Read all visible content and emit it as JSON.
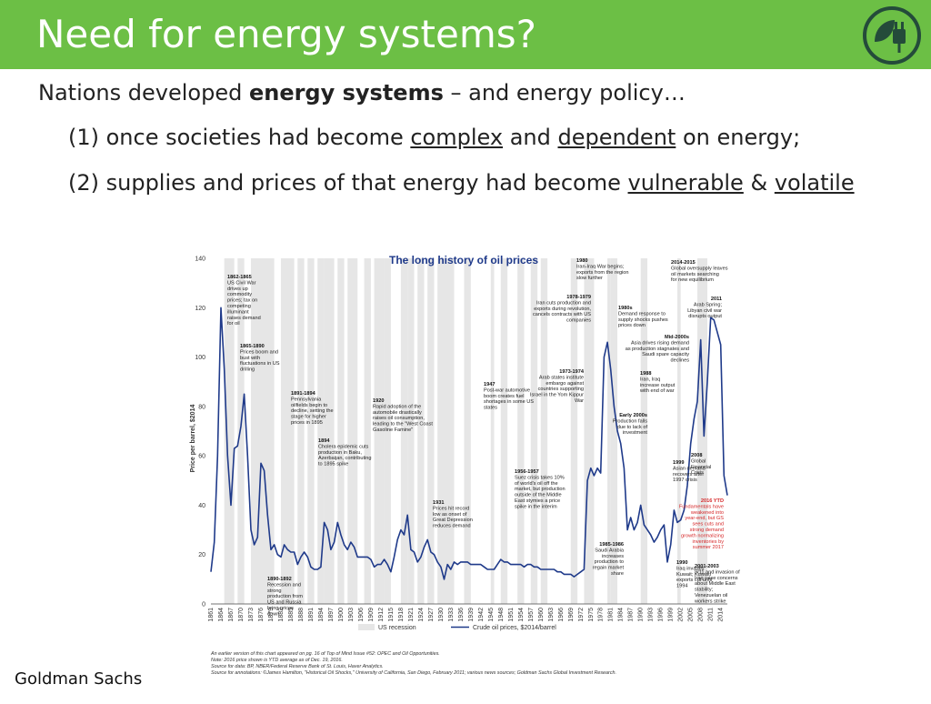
{
  "slide": {
    "title": "Need for energy systems?",
    "logo_icon": "plug-leaf-icon",
    "line1": {
      "pre": "Nations developed ",
      "bold": "energy systems",
      "post": " – and energy policy…"
    },
    "line2": {
      "pre": "(1) once  societies had become ",
      "u1": "complex",
      "mid": " and ",
      "u2": "dependent",
      "post": " on energy;"
    },
    "line3": {
      "pre": "(2) supplies and prices of that energy had become ",
      "u1": "vulnerable",
      "mid": " & ",
      "u2": "volatile"
    },
    "footer": "Goldman Sachs",
    "colors": {
      "header": "#6cbf45",
      "series": "#1f3a8a",
      "recession": "#e6e6e6",
      "highlight": "#d62728"
    }
  },
  "chart_data": {
    "type": "line",
    "title": "The long history of oil prices",
    "ylabel": "Price per barrel, $2014",
    "ylim": [
      0,
      140
    ],
    "yticks": [
      "0",
      "20",
      "40",
      "60",
      "80",
      "100",
      "120",
      "140"
    ],
    "xlim": [
      1861,
      2016
    ],
    "xticks": [
      "1861",
      "1864",
      "1867",
      "1870",
      "1873",
      "1876",
      "1879",
      "1882",
      "1885",
      "1888",
      "1891",
      "1894",
      "1897",
      "1900",
      "1903",
      "1906",
      "1909",
      "1912",
      "1915",
      "1918",
      "1921",
      "1924",
      "1927",
      "1930",
      "1933",
      "1936",
      "1939",
      "1942",
      "1945",
      "1948",
      "1951",
      "1954",
      "1957",
      "1960",
      "1963",
      "1966",
      "1969",
      "1972",
      "1975",
      "1978",
      "1981",
      "1984",
      "1987",
      "1990",
      "1993",
      "1996",
      "1999",
      "2002",
      "2005",
      "2008",
      "2011",
      "2014"
    ],
    "legend": [
      "US recession",
      "Crude oil prices, $2014/barrel"
    ],
    "series": [
      {
        "name": "Crude oil prices, $2014/barrel",
        "x": [
          1861,
          1862,
          1863,
          1864,
          1865,
          1866,
          1867,
          1868,
          1869,
          1870,
          1871,
          1872,
          1873,
          1874,
          1875,
          1876,
          1877,
          1878,
          1879,
          1880,
          1881,
          1882,
          1883,
          1884,
          1885,
          1886,
          1887,
          1888,
          1889,
          1890,
          1891,
          1892,
          1893,
          1894,
          1895,
          1896,
          1897,
          1898,
          1899,
          1900,
          1901,
          1902,
          1903,
          1904,
          1905,
          1906,
          1907,
          1908,
          1909,
          1910,
          1911,
          1912,
          1913,
          1914,
          1915,
          1916,
          1917,
          1918,
          1919,
          1920,
          1921,
          1922,
          1923,
          1924,
          1925,
          1926,
          1927,
          1928,
          1929,
          1930,
          1931,
          1932,
          1933,
          1934,
          1935,
          1936,
          1937,
          1938,
          1939,
          1940,
          1941,
          1942,
          1943,
          1944,
          1945,
          1946,
          1947,
          1948,
          1949,
          1950,
          1951,
          1952,
          1953,
          1954,
          1955,
          1956,
          1957,
          1958,
          1959,
          1960,
          1961,
          1962,
          1963,
          1964,
          1965,
          1966,
          1967,
          1968,
          1969,
          1970,
          1971,
          1972,
          1973,
          1974,
          1975,
          1976,
          1977,
          1978,
          1979,
          1980,
          1981,
          1982,
          1983,
          1984,
          1985,
          1986,
          1987,
          1988,
          1989,
          1990,
          1991,
          1992,
          1993,
          1994,
          1995,
          1996,
          1997,
          1998,
          1999,
          2000,
          2001,
          2002,
          2003,
          2004,
          2005,
          2006,
          2007,
          2008,
          2009,
          2010,
          2011,
          2012,
          2013,
          2014,
          2015,
          2016
        ],
        "y": [
          13,
          25,
          60,
          120,
          95,
          60,
          40,
          63,
          64,
          72,
          85,
          60,
          30,
          24,
          27,
          57,
          54,
          36,
          22,
          24,
          20,
          19,
          24,
          22,
          21,
          21,
          16,
          19,
          21,
          19,
          15,
          14,
          14,
          15,
          33,
          30,
          22,
          25,
          33,
          28,
          24,
          22,
          25,
          23,
          19,
          19,
          19,
          19,
          18,
          15,
          16,
          16,
          18,
          16,
          13,
          19,
          26,
          30,
          28,
          36,
          22,
          21,
          17,
          19,
          23,
          26,
          21,
          20,
          17,
          15,
          10,
          16,
          14,
          17,
          16,
          17,
          17,
          17,
          16,
          16,
          16,
          16,
          15,
          14,
          14,
          14,
          16,
          18,
          17,
          17,
          16,
          16,
          16,
          16,
          15,
          16,
          16,
          15,
          15,
          14,
          14,
          14,
          14,
          14,
          13,
          13,
          12,
          12,
          12,
          11,
          12,
          13,
          14,
          50,
          55,
          52,
          55,
          53,
          100,
          106,
          95,
          80,
          70,
          65,
          55,
          30,
          35,
          30,
          33,
          40,
          32,
          30,
          28,
          25,
          27,
          30,
          32,
          17,
          24,
          38,
          33,
          34,
          38,
          48,
          65,
          75,
          82,
          107,
          68,
          90,
          116,
          115,
          110,
          105,
          52,
          44
        ]
      }
    ],
    "annotations": [
      {
        "label": "1862-1865",
        "text": "US Civil War drives up commodity prices; tax on competing illuminant raises demand for oil"
      },
      {
        "label": "1865-1890",
        "text": "Prices boom and bust with fluctuations in US drilling"
      },
      {
        "label": "1891-1894",
        "text": "Pennsylvania oilfields begin to decline, setting the stage for higher prices in 1895"
      },
      {
        "label": "1894",
        "text": "Cholera epidemic cuts production in Baku, Azerbaijan, contributing to 1895 spike"
      },
      {
        "label": "1890-1892",
        "text": "Recession and strong production from US and Russia bring prices down"
      },
      {
        "label": "1920",
        "text": "Rapid adoption of the automobile drastically raises oil consumption, leading to the \"West Coast Gasoline Famine\""
      },
      {
        "label": "1931",
        "text": "Prices hit record low as onset of Great Depression reduces demand"
      },
      {
        "label": "1947",
        "text": "Post-war automotive boom creates fuel shortages in some US states"
      },
      {
        "label": "1956-1957",
        "text": "Suez crisis takes 10% of world's oil off the market, but production outside of the Middle East stymies a price spike in the interim"
      },
      {
        "label": "1973-1974",
        "text": "Arab states institute embargo against countries supporting Israel in the Yom Kippur War"
      },
      {
        "label": "1978-1979",
        "text": "Iran cuts production and exports during revolution, cancels contracts with US companies"
      },
      {
        "label": "1980",
        "text": "Iran-Iraq War begins; exports from the region slow further"
      },
      {
        "label": "1980s",
        "text": "Demand response to supply shocks pushes prices down"
      },
      {
        "label": "1985-1986",
        "text": "Saudi Arabia increases production to regain market share"
      },
      {
        "label": "1988",
        "text": "Iran, Iraq increase output with end of war"
      },
      {
        "label": "1990",
        "text": "Iraq invades Kuwait; Kuwaiti exports cut until 1994"
      },
      {
        "label": "Mid-2000s",
        "text": "Asia drives rising demand as production stagnates and Saudi spare capacity declines"
      },
      {
        "label": "Early 2000s",
        "text": "Production falls due to lack of investment"
      },
      {
        "label": "1999",
        "text": "Asian demand recovers after 1997 crisis"
      },
      {
        "label": "2001-2003",
        "text": "9/11 and invasion of Iraq raise concerns about Middle East stability; Venezuelan oil workers strike"
      },
      {
        "label": "2008",
        "text": "Global Financial Crisis"
      },
      {
        "label": "2011",
        "text": "Arab Spring; Libyan civil war disrupts output"
      },
      {
        "label": "2014-2015",
        "text": "Global oversupply leaves oil markets searching for new equilibrium"
      },
      {
        "label": "2016 YTD",
        "text": "Fundamentals have weakened into year-end, but GS sees cuts and strong demand growth normalizing inventories by summer 2017"
      }
    ],
    "footnotes": [
      "An earlier version of this chart appeared on pg. 16 of Top of Mind Issue #52: OPEC and Oil Opportunities.",
      "Note: 2016 price shown is YTD average as of Dec. 19, 2016.",
      "Source for data: BP, NBER/Federal Reserve Bank of St. Louis, Haver Analytics.",
      "Source for annotations: ©James Hamilton, \"Historical Oil Shocks,\" University of California, San Diego, February 2011; various news sources; Goldman Sachs Global Investment Research."
    ],
    "recessions": [
      [
        1865,
        1867
      ],
      [
        1869,
        1870
      ],
      [
        1873,
        1879
      ],
      [
        1882,
        1885
      ],
      [
        1887,
        1888
      ],
      [
        1890,
        1891
      ],
      [
        1893,
        1894
      ],
      [
        1895,
        1897
      ],
      [
        1899,
        1900
      ],
      [
        1902,
        1904
      ],
      [
        1907,
        1908
      ],
      [
        1910,
        1912
      ],
      [
        1913,
        1914
      ],
      [
        1918,
        1919
      ],
      [
        1920,
        1921
      ],
      [
        1923,
        1924
      ],
      [
        1926,
        1927
      ],
      [
        1929,
        1933
      ],
      [
        1937,
        1938
      ],
      [
        1945,
        1945
      ],
      [
        1948,
        1949
      ],
      [
        1953,
        1954
      ],
      [
        1957,
        1958
      ],
      [
        1960,
        1961
      ],
      [
        1969,
        1970
      ],
      [
        1973,
        1975
      ],
      [
        1980,
        1980
      ],
      [
        1981,
        1982
      ],
      [
        1990,
        1991
      ],
      [
        2001,
        2001
      ],
      [
        2007,
        2009
      ]
    ],
    "grid": false,
    "legend_position": "bottom"
  }
}
